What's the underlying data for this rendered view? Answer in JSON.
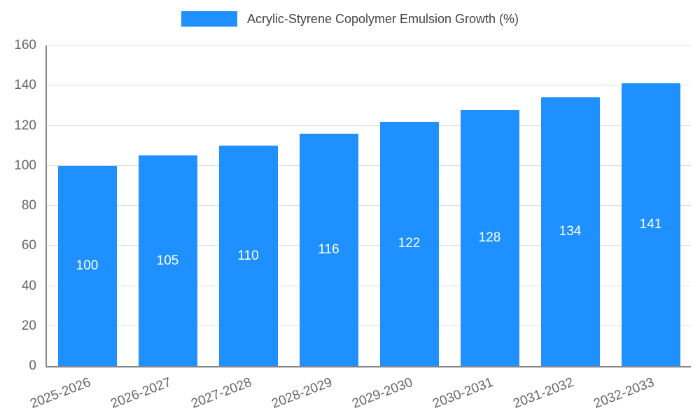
{
  "chart_data": {
    "type": "bar",
    "title": "Acrylic-Styrene Copolymer Emulsion Growth (%)",
    "categories": [
      "2025-2026",
      "2026-2027",
      "2027-2028",
      "2028-2029",
      "2029-2030",
      "2030-2031",
      "2031-2032",
      "2032-2033"
    ],
    "values": [
      100,
      105,
      110,
      116,
      122,
      128,
      134,
      141
    ],
    "xlabel": "",
    "ylabel": "",
    "ylim": [
      0,
      160
    ],
    "yticks": [
      0,
      20,
      40,
      60,
      80,
      100,
      120,
      140,
      160
    ],
    "grid": true,
    "legend_position": "top",
    "colors": {
      "bar": "#1E90FF",
      "bar_value_label": "#ffffff",
      "grid": "#dddddd",
      "axis": "#888888",
      "tick_text": "#666666",
      "title_text": "#444444"
    }
  }
}
